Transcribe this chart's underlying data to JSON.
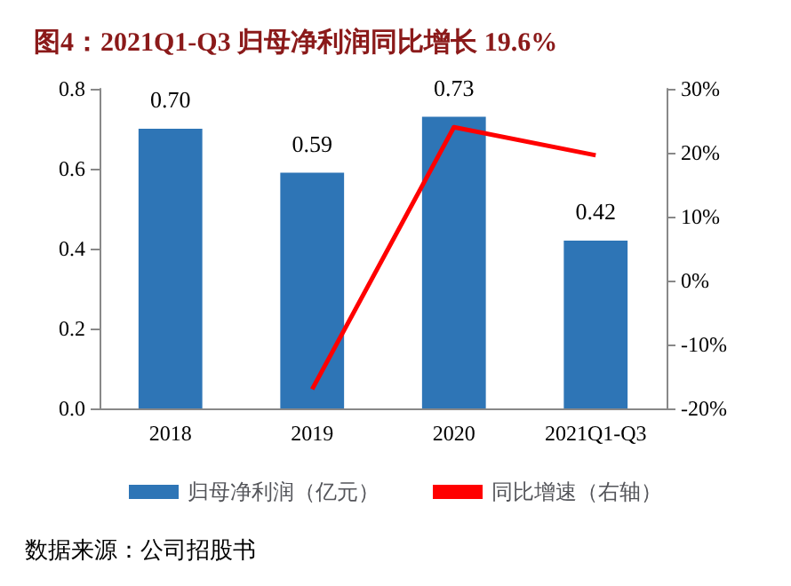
{
  "chart_data": {
    "type": "bar",
    "title": "图4：2021Q1-Q3 归母净利润同比增长 19.6%",
    "categories": [
      "2018",
      "2019",
      "2020",
      "2021Q1-Q3"
    ],
    "series": [
      {
        "name": "归母净利润（亿元）",
        "color": "#2e75b6",
        "values": [
          0.7,
          0.59,
          0.73,
          0.42
        ],
        "value_labels": [
          "0.70",
          "0.59",
          "0.73",
          "0.42"
        ]
      },
      {
        "name": "同比增速（右轴）",
        "type": "line",
        "axis": "y2",
        "color": "#ff0000",
        "values": [
          null,
          -17,
          24,
          19.6
        ]
      }
    ],
    "ylim": [
      0,
      0.8
    ],
    "yticks": [
      {
        "value": 0,
        "label": "0.0"
      },
      {
        "value": 0.2,
        "label": "0.2"
      },
      {
        "value": 0.4,
        "label": "0.4"
      },
      {
        "value": 0.6,
        "label": "0.6"
      },
      {
        "value": 0.8,
        "label": "0.8"
      }
    ],
    "y2lim": [
      -20,
      30
    ],
    "y2ticks": [
      {
        "value": -20,
        "label": "-20%"
      },
      {
        "value": -10,
        "label": "-10%"
      },
      {
        "value": 0,
        "label": "0%"
      },
      {
        "value": 10,
        "label": "10%"
      },
      {
        "value": 20,
        "label": "20%"
      },
      {
        "value": 30,
        "label": "30%"
      }
    ],
    "legend": "bottom",
    "grid": false,
    "marker": "none",
    "annotations": [
      "数据来源：公司招股书"
    ]
  }
}
